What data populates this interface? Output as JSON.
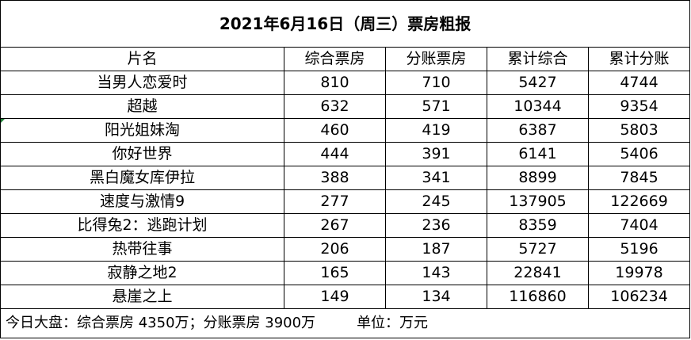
{
  "report": {
    "title": "2021年6月16日（周三）票房粗报",
    "headers": [
      "片名",
      "综合票房",
      "分账票房",
      "累计综合",
      "累计分账"
    ],
    "rows": [
      [
        "当男人恋爱时",
        "810",
        "710",
        "5427",
        "4744"
      ],
      [
        "超越",
        "632",
        "571",
        "10344",
        "9354"
      ],
      [
        "阳光姐妹淘",
        "460",
        "419",
        "6387",
        "5803"
      ],
      [
        "你好世界",
        "444",
        "391",
        "6141",
        "5406"
      ],
      [
        "黑白魔女库伊拉",
        "388",
        "341",
        "8899",
        "7845"
      ],
      [
        "速度与激情9",
        "277",
        "245",
        "137905",
        "122669"
      ],
      [
        "比得兔2：逃跑计划",
        "267",
        "236",
        "8359",
        "7404"
      ],
      [
        "热带往事",
        "206",
        "187",
        "5727",
        "5196"
      ],
      [
        "寂静之地2",
        "165",
        "143",
        "22841",
        "19978"
      ],
      [
        "悬崖之上",
        "149",
        "134",
        "116860",
        "106234"
      ]
    ],
    "footer_totals": "今日大盘：综合票房 4350万；分账票房 3900万",
    "footer_unit": "单位：万元"
  }
}
